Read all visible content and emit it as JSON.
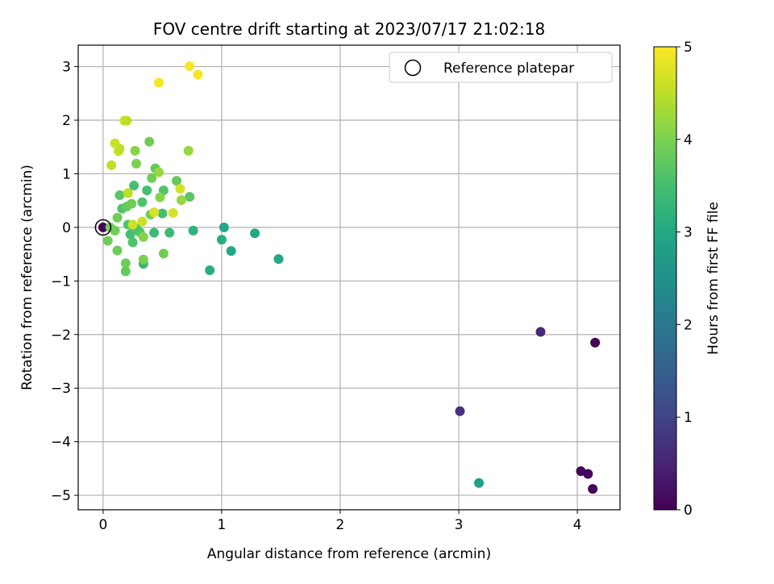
{
  "chart_data": {
    "type": "scatter",
    "title": "FOV centre drift starting at 2023/07/17 21:02:18",
    "xlabel": "Angular distance from reference (arcmin)",
    "ylabel": "Rotation from reference (arcmin)",
    "xlim": [
      -0.21,
      4.36
    ],
    "ylim": [
      -5.27,
      3.4
    ],
    "xticks": [
      0,
      1,
      2,
      3,
      4
    ],
    "xtick_labels": [
      "0",
      "1",
      "2",
      "3",
      "4"
    ],
    "yticks": [
      3,
      2,
      1,
      0,
      -1,
      -2,
      -3,
      -4,
      -5
    ],
    "ytick_labels": [
      "3",
      "2",
      "1",
      "0",
      "−1",
      "−2",
      "−3",
      "−4",
      "−5"
    ],
    "grid": true,
    "legend": {
      "position": "top-right",
      "entries": [
        "Reference platepar"
      ]
    },
    "reference_point": {
      "x": 0,
      "y": 0
    },
    "colorbar": {
      "label": "Hours from first FF file",
      "colormap": "viridis",
      "range": [
        0,
        5
      ],
      "ticks": [
        0,
        1,
        2,
        3,
        4,
        5
      ],
      "tick_labels": [
        "0",
        "1",
        "2",
        "3",
        "4",
        "5"
      ]
    },
    "points": [
      {
        "x": 4.15,
        "y": -2.15,
        "c": 0.05
      },
      {
        "x": 4.03,
        "y": -4.55,
        "c": 0.1
      },
      {
        "x": 4.09,
        "y": -4.6,
        "c": 0.1
      },
      {
        "x": 4.13,
        "y": -4.88,
        "c": 0.05
      },
      {
        "x": 3.69,
        "y": -1.95,
        "c": 0.6
      },
      {
        "x": 3.01,
        "y": -3.43,
        "c": 0.7
      },
      {
        "x": 3.17,
        "y": -4.77,
        "c": 2.8
      },
      {
        "x": 0.0,
        "y": 0.0,
        "c": 0.0
      },
      {
        "x": 1.48,
        "y": -0.59,
        "c": 3.0
      },
      {
        "x": 1.28,
        "y": -0.11,
        "c": 3.0
      },
      {
        "x": 1.08,
        "y": -0.44,
        "c": 3.0
      },
      {
        "x": 1.02,
        "y": 0.0,
        "c": 3.0
      },
      {
        "x": 1.0,
        "y": -0.23,
        "c": 3.1
      },
      {
        "x": 0.9,
        "y": -0.8,
        "c": 3.1
      },
      {
        "x": 0.76,
        "y": -0.06,
        "c": 3.2
      },
      {
        "x": 0.56,
        "y": -0.1,
        "c": 3.4
      },
      {
        "x": 0.34,
        "y": -0.68,
        "c": 3.3
      },
      {
        "x": 0.43,
        "y": -0.1,
        "c": 3.4
      },
      {
        "x": 0.5,
        "y": 0.26,
        "c": 3.5
      },
      {
        "x": 0.37,
        "y": 0.69,
        "c": 3.5
      },
      {
        "x": 0.26,
        "y": 0.78,
        "c": 3.5
      },
      {
        "x": 0.33,
        "y": 0.47,
        "c": 3.6
      },
      {
        "x": 0.51,
        "y": 0.69,
        "c": 3.6
      },
      {
        "x": 0.73,
        "y": 0.57,
        "c": 3.7
      },
      {
        "x": 0.62,
        "y": 0.87,
        "c": 3.8
      },
      {
        "x": 0.16,
        "y": 0.35,
        "c": 3.6
      },
      {
        "x": 0.21,
        "y": 0.05,
        "c": 3.6
      },
      {
        "x": 0.26,
        "y": -0.05,
        "c": 3.7
      },
      {
        "x": 0.31,
        "y": -0.09,
        "c": 3.7
      },
      {
        "x": 0.25,
        "y": -0.28,
        "c": 3.6
      },
      {
        "x": 0.23,
        "y": -0.13,
        "c": 3.5
      },
      {
        "x": 0.28,
        "y": -0.02,
        "c": 3.6
      },
      {
        "x": 0.14,
        "y": 0.6,
        "c": 3.7
      },
      {
        "x": 0.2,
        "y": 0.39,
        "c": 3.8
      },
      {
        "x": 0.24,
        "y": 0.44,
        "c": 3.9
      },
      {
        "x": 0.12,
        "y": 0.18,
        "c": 3.9
      },
      {
        "x": 0.06,
        "y": 0.0,
        "c": 3.9
      },
      {
        "x": 0.1,
        "y": -0.06,
        "c": 3.9
      },
      {
        "x": 0.04,
        "y": -0.25,
        "c": 3.9
      },
      {
        "x": 0.12,
        "y": -0.43,
        "c": 3.9
      },
      {
        "x": 0.19,
        "y": -0.67,
        "c": 3.9
      },
      {
        "x": 0.19,
        "y": -0.82,
        "c": 3.8
      },
      {
        "x": 0.34,
        "y": -0.6,
        "c": 4.0
      },
      {
        "x": 0.34,
        "y": -0.18,
        "c": 4.1
      },
      {
        "x": 0.51,
        "y": -0.49,
        "c": 3.9
      },
      {
        "x": 0.4,
        "y": 0.24,
        "c": 3.9
      },
      {
        "x": 0.44,
        "y": 1.1,
        "c": 3.8
      },
      {
        "x": 0.41,
        "y": 0.92,
        "c": 3.9
      },
      {
        "x": 0.39,
        "y": 1.6,
        "c": 3.9
      },
      {
        "x": 0.28,
        "y": 1.19,
        "c": 4.0
      },
      {
        "x": 0.27,
        "y": 1.43,
        "c": 4.1
      },
      {
        "x": 0.48,
        "y": 0.56,
        "c": 4.1
      },
      {
        "x": 0.66,
        "y": 0.51,
        "c": 4.2
      },
      {
        "x": 0.72,
        "y": 1.43,
        "c": 4.2
      },
      {
        "x": 0.47,
        "y": 1.03,
        "c": 4.2
      },
      {
        "x": 0.21,
        "y": 0.64,
        "c": 4.5
      },
      {
        "x": 0.07,
        "y": 1.16,
        "c": 4.5
      },
      {
        "x": 0.33,
        "y": 0.11,
        "c": 4.6
      },
      {
        "x": 0.25,
        "y": 0.05,
        "c": 4.6
      },
      {
        "x": 0.43,
        "y": 0.28,
        "c": 4.7
      },
      {
        "x": 0.59,
        "y": 0.27,
        "c": 4.7
      },
      {
        "x": 0.65,
        "y": 0.72,
        "c": 4.7
      },
      {
        "x": 0.13,
        "y": 1.42,
        "c": 4.6
      },
      {
        "x": 0.14,
        "y": 1.47,
        "c": 4.5
      },
      {
        "x": 0.1,
        "y": 1.57,
        "c": 4.6
      },
      {
        "x": 0.18,
        "y": 1.99,
        "c": 4.6
      },
      {
        "x": 0.2,
        "y": 1.99,
        "c": 4.5
      },
      {
        "x": 0.47,
        "y": 2.7,
        "c": 4.95
      },
      {
        "x": 0.73,
        "y": 3.01,
        "c": 4.95
      },
      {
        "x": 0.8,
        "y": 2.85,
        "c": 4.95
      }
    ]
  }
}
